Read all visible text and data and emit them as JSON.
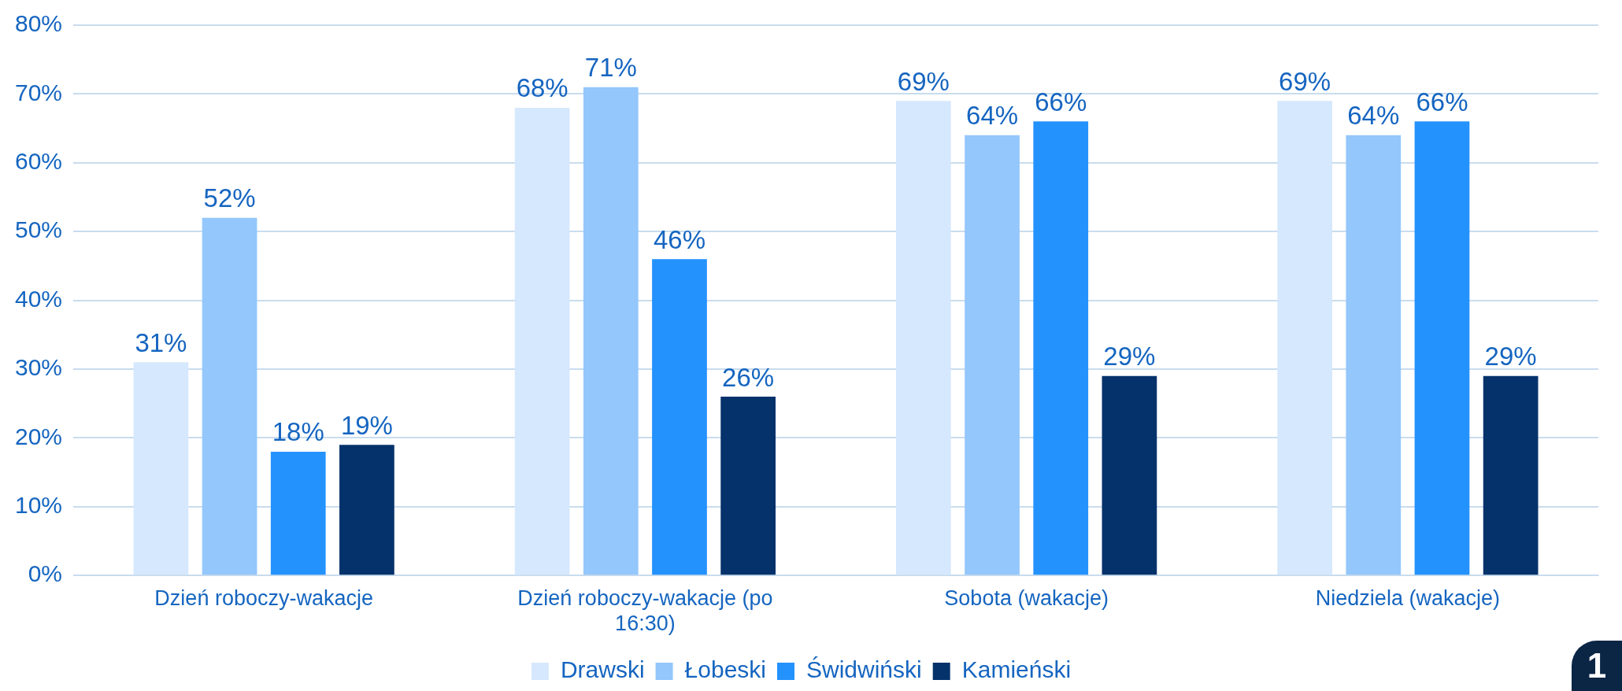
{
  "chart_data": {
    "type": "bar",
    "categories": [
      "Dzień roboczy-wakacje",
      "Dzień roboczy-wakacje (po 16:30)",
      "Sobota (wakacje)",
      "Niedziela (wakacje)"
    ],
    "series": [
      {
        "name": "Drawski",
        "color": "#d6e8fd",
        "values": [
          31,
          68,
          69,
          69
        ],
        "value_labels": [
          "31%",
          "68%",
          "69%",
          "69%"
        ]
      },
      {
        "name": "Łobeski",
        "color": "#94c7fb",
        "values": [
          52,
          71,
          64,
          64
        ],
        "value_labels": [
          "52%",
          "71%",
          "64%",
          "64%"
        ]
      },
      {
        "name": "Świdwiński",
        "color": "#2492fd",
        "values": [
          18,
          46,
          66,
          66
        ],
        "value_labels": [
          "18%",
          "46%",
          "66%",
          "66%"
        ]
      },
      {
        "name": "Kamieński",
        "color": "#05326b",
        "values": [
          19,
          26,
          29,
          29
        ],
        "value_labels": [
          "19%",
          "26%",
          "29%",
          "29%"
        ]
      }
    ],
    "ylim": [
      0,
      80
    ],
    "yticks": [
      {
        "value": 0,
        "label": "0%"
      },
      {
        "value": 10,
        "label": "10%"
      },
      {
        "value": 20,
        "label": "20%"
      },
      {
        "value": 30,
        "label": "30%"
      },
      {
        "value": 40,
        "label": "40%"
      },
      {
        "value": 50,
        "label": "50%"
      },
      {
        "value": 60,
        "label": "60%"
      },
      {
        "value": 70,
        "label": "70%"
      },
      {
        "value": 80,
        "label": "80%"
      }
    ],
    "grid": "y",
    "legend": "bottom",
    "annotations": [
      "1"
    ]
  }
}
